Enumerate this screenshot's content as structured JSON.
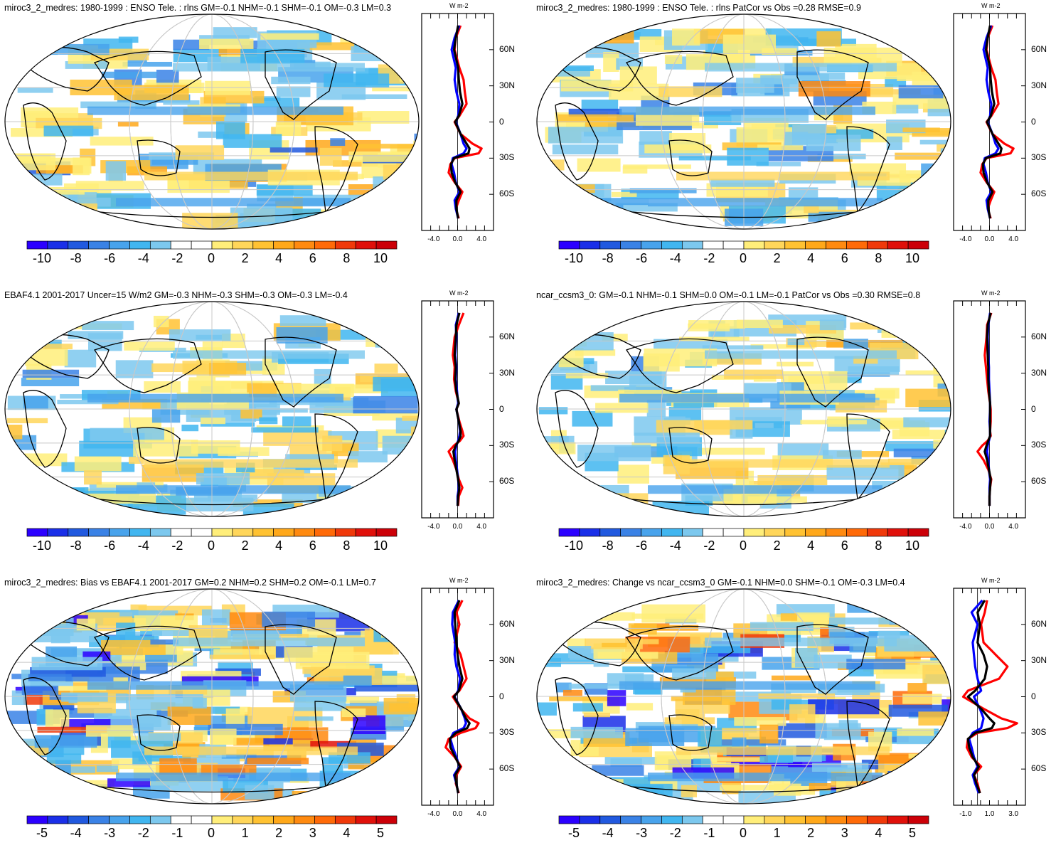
{
  "chart_data": [
    {
      "type": "heatmap",
      "title": "miroc3_2_medres: 1980-1999 : ENSO Tele. : rlns GM=-0.1 NHM=-0.1 SHM=-0.1 OM=-0.3 LM=0.3",
      "colorbar_ticks": [
        "-10",
        "-8",
        "-6",
        "-4",
        "-2",
        "0",
        "2",
        "4",
        "6",
        "8",
        "10"
      ],
      "profile_unit": "W m-2",
      "profile_xticks": [
        "-4.0",
        "0.0",
        "4.0"
      ],
      "lat_ticks": [
        "60N",
        "30N",
        "0",
        "30S",
        "60S"
      ],
      "profile_series": [
        {
          "color": "#ff0000",
          "lat": [
            80,
            70,
            60,
            45,
            35,
            25,
            15,
            5,
            0,
            -10,
            -18,
            -22,
            -26,
            -30,
            -35,
            -42,
            -50,
            -58,
            -65,
            -72,
            -80
          ],
          "values": [
            0.5,
            -0.3,
            -0.5,
            0.3,
            1.0,
            1.2,
            1.5,
            0.3,
            -0.5,
            0.5,
            2.5,
            4.0,
            3.5,
            -0.5,
            -1.2,
            -1.5,
            -0.5,
            0.8,
            0.2,
            -0.3,
            0.2
          ]
        },
        {
          "color": "#0000ff",
          "lat": [
            80,
            70,
            60,
            45,
            35,
            25,
            15,
            5,
            0,
            -10,
            -18,
            -22,
            -26,
            -30,
            -35,
            -42,
            -50,
            -58,
            -65,
            -72,
            -80
          ],
          "values": [
            0.3,
            -0.5,
            -1.0,
            -0.3,
            -0.5,
            -0.2,
            0.3,
            0.1,
            -0.3,
            0.5,
            1.0,
            1.5,
            1.0,
            -0.8,
            -1.0,
            -0.6,
            -0.3,
            0.3,
            -0.5,
            -0.3,
            0.1
          ]
        },
        {
          "color": "#000000",
          "lat": [
            80,
            70,
            60,
            45,
            35,
            25,
            15,
            5,
            0,
            -10,
            -18,
            -22,
            -26,
            -30,
            -35,
            -42,
            -50,
            -58,
            -65,
            -72,
            -80
          ],
          "values": [
            0.1,
            -0.3,
            -0.6,
            0.1,
            0.2,
            0.4,
            0.8,
            0.2,
            -0.4,
            0.5,
            1.5,
            2.0,
            1.8,
            -0.6,
            -1.1,
            -1.0,
            -0.4,
            0.5,
            -0.2,
            -0.2,
            0.1
          ]
        }
      ]
    },
    {
      "type": "heatmap",
      "title": "miroc3_2_medres: 1980-1999 : ENSO Tele. : rlns PatCor vs Obs =0.28 RMSE=0.9",
      "colorbar_ticks": [
        "-10",
        "-8",
        "-6",
        "-4",
        "-2",
        "0",
        "2",
        "4",
        "6",
        "8",
        "10"
      ],
      "profile_unit": "W m-2",
      "profile_xticks": [
        "-4.0",
        "0.0",
        "4.0"
      ],
      "lat_ticks": [
        "60N",
        "30N",
        "0",
        "30S",
        "60S"
      ],
      "profile_series": [
        {
          "color": "#ff0000",
          "lat": [
            80,
            70,
            60,
            45,
            35,
            25,
            15,
            5,
            0,
            -10,
            -18,
            -22,
            -26,
            -30,
            -35,
            -42,
            -50,
            -58,
            -65,
            -72,
            -80
          ],
          "values": [
            0.5,
            -0.3,
            -0.5,
            0.3,
            1.0,
            1.2,
            1.5,
            0.3,
            -0.5,
            0.5,
            2.5,
            4.0,
            3.5,
            -0.5,
            -1.2,
            -1.5,
            -0.5,
            0.8,
            0.2,
            -0.3,
            0.2
          ]
        },
        {
          "color": "#0000ff",
          "lat": [
            80,
            70,
            60,
            45,
            35,
            25,
            15,
            5,
            0,
            -10,
            -18,
            -22,
            -26,
            -30,
            -35,
            -42,
            -50,
            -58,
            -65,
            -72,
            -80
          ],
          "values": [
            0.3,
            -0.5,
            -1.0,
            -0.3,
            -0.5,
            -0.2,
            0.3,
            0.1,
            -0.3,
            0.5,
            1.0,
            1.5,
            1.0,
            -0.8,
            -1.0,
            -0.6,
            -0.3,
            0.3,
            -0.5,
            -0.3,
            0.1
          ]
        },
        {
          "color": "#000000",
          "lat": [
            80,
            70,
            60,
            45,
            35,
            25,
            15,
            5,
            0,
            -10,
            -18,
            -22,
            -26,
            -30,
            -35,
            -42,
            -50,
            -58,
            -65,
            -72,
            -80
          ],
          "values": [
            0.1,
            -0.3,
            -0.6,
            0.1,
            0.2,
            0.4,
            0.8,
            0.2,
            -0.4,
            0.5,
            1.5,
            2.0,
            1.8,
            -0.6,
            -1.1,
            -1.0,
            -0.4,
            0.5,
            -0.2,
            -0.2,
            0.1
          ]
        }
      ]
    },
    {
      "type": "heatmap",
      "title": "EBAF4.1 2001-2017 Uncer=15 W/m2 GM=-0.3 NHM=-0.3 SHM=-0.3 OM=-0.3 LM=-0.4",
      "colorbar_ticks": [
        "-10",
        "-8",
        "-6",
        "-4",
        "-2",
        "0",
        "2",
        "4",
        "6",
        "8",
        "10"
      ],
      "profile_unit": "W m-2",
      "profile_xticks": [
        "-4.0",
        "0.0",
        "4.0"
      ],
      "lat_ticks": [
        "60N",
        "30N",
        "0",
        "30S",
        "60S"
      ],
      "profile_series": [
        {
          "color": "#ff0000",
          "lat": [
            80,
            70,
            60,
            45,
            35,
            25,
            15,
            5,
            0,
            -10,
            -18,
            -22,
            -26,
            -30,
            -35,
            -42,
            -50,
            -58,
            -65,
            -72,
            -80
          ],
          "values": [
            1.0,
            0.2,
            -0.5,
            -0.8,
            -0.5,
            -0.6,
            -0.3,
            0.2,
            -0.2,
            0.3,
            0.8,
            1.0,
            0.4,
            -0.6,
            -1.5,
            -0.8,
            -0.2,
            0.2,
            0.8,
            0.2,
            0.1
          ]
        },
        {
          "color": "#0000ff",
          "lat": [
            80,
            70,
            60,
            45,
            35,
            25,
            15,
            5,
            0,
            -10,
            -18,
            -22,
            -26,
            -30,
            -35,
            -42,
            -50,
            -58,
            -65,
            -72,
            -80
          ],
          "values": [
            0.2,
            -0.3,
            -0.2,
            -0.4,
            -0.2,
            -0.3,
            -0.1,
            0.1,
            -0.2,
            0.2,
            0.4,
            0.3,
            0.1,
            -0.2,
            -0.4,
            -0.3,
            -0.1,
            0.1,
            0.2,
            0.0,
            0.0
          ]
        },
        {
          "color": "#000000",
          "lat": [
            80,
            70,
            60,
            45,
            35,
            25,
            15,
            5,
            0,
            -10,
            -18,
            -22,
            -26,
            -30,
            -35,
            -42,
            -50,
            -58,
            -65,
            -72,
            -80
          ],
          "values": [
            0.3,
            -0.2,
            -0.3,
            -0.5,
            -0.3,
            -0.4,
            -0.2,
            0.2,
            -0.2,
            0.2,
            0.5,
            0.5,
            0.2,
            -0.3,
            -0.7,
            -0.5,
            -0.2,
            0.1,
            0.3,
            0.1,
            0.0
          ]
        }
      ]
    },
    {
      "type": "heatmap",
      "title": "ncar_ccsm3_0: GM=-0.1 NHM=-0.1 SHM=0.0 OM=-0.1 LM=-0.1 PatCor vs Obs =0.30 RMSE=0.8",
      "colorbar_ticks": [
        "-10",
        "-8",
        "-6",
        "-4",
        "-2",
        "0",
        "2",
        "4",
        "6",
        "8",
        "10"
      ],
      "profile_unit": "W m-2",
      "profile_xticks": [
        "-4.0",
        "0.0",
        "4.0"
      ],
      "lat_ticks": [
        "60N",
        "30N",
        "0",
        "30S",
        "60S"
      ],
      "profile_series": [
        {
          "color": "#ff0000",
          "lat": [
            80,
            70,
            60,
            45,
            35,
            25,
            15,
            5,
            0,
            -10,
            -18,
            -22,
            -26,
            -30,
            -35,
            -42,
            -50,
            -58,
            -65,
            -72,
            -80
          ],
          "values": [
            0.3,
            -0.4,
            -0.5,
            -0.8,
            -0.6,
            -0.4,
            -0.2,
            0.1,
            0.2,
            0.2,
            0.1,
            0.2,
            -0.3,
            -1.2,
            -2.0,
            -1.0,
            -0.2,
            0.3,
            0.1,
            0.0,
            0.0
          ]
        },
        {
          "color": "#0000ff",
          "lat": [
            80,
            70,
            60,
            45,
            35,
            25,
            15,
            5,
            0,
            -10,
            -18,
            -22,
            -26,
            -30,
            -35,
            -42,
            -50,
            -58,
            -65,
            -72,
            -80
          ],
          "values": [
            0.1,
            -0.2,
            -0.3,
            -0.2,
            -0.1,
            -0.1,
            0.0,
            0.1,
            0.1,
            0.0,
            0.1,
            0.1,
            -0.1,
            -0.3,
            -0.4,
            -0.2,
            -0.1,
            0.1,
            0.0,
            0.0,
            0.0
          ]
        },
        {
          "color": "#000000",
          "lat": [
            80,
            70,
            60,
            45,
            35,
            25,
            15,
            5,
            0,
            -10,
            -18,
            -22,
            -26,
            -30,
            -35,
            -42,
            -50,
            -58,
            -65,
            -72,
            -80
          ],
          "values": [
            0.2,
            -0.3,
            -0.4,
            -0.3,
            -0.2,
            -0.2,
            -0.1,
            0.1,
            0.1,
            0.1,
            0.1,
            0.1,
            -0.2,
            -0.5,
            -0.8,
            -0.4,
            -0.1,
            0.2,
            0.1,
            0.0,
            0.0
          ]
        }
      ]
    },
    {
      "type": "heatmap",
      "title": "miroc3_2_medres: Bias vs EBAF4.1 2001-2017 GM=0.2 NHM=0.2 SHM=0.2 OM=-0.1 LM=0.7",
      "colorbar_ticks": [
        "-5",
        "-4",
        "-3",
        "-2",
        "-1",
        "0",
        "1",
        "2",
        "3",
        "4",
        "5"
      ],
      "profile_unit": "W m-2",
      "profile_xticks": [
        "-4.0",
        "0.0",
        "4.0"
      ],
      "lat_ticks": [
        "60N",
        "30N",
        "0",
        "30S",
        "60S"
      ],
      "profile_series": [
        {
          "color": "#ff0000",
          "lat": [
            80,
            70,
            60,
            45,
            35,
            25,
            15,
            5,
            0,
            -10,
            -18,
            -22,
            -26,
            -30,
            -35,
            -42,
            -50,
            -58,
            -65,
            -72,
            -80
          ],
          "values": [
            0.8,
            -0.2,
            0.3,
            -0.5,
            0.5,
            1.0,
            1.5,
            0.3,
            -0.8,
            0.5,
            2.0,
            3.5,
            3.0,
            0.5,
            -1.5,
            -2.0,
            -0.5,
            0.6,
            -0.2,
            -0.3,
            0.2
          ]
        },
        {
          "color": "#0000ff",
          "lat": [
            80,
            70,
            60,
            45,
            35,
            25,
            15,
            5,
            0,
            -10,
            -18,
            -22,
            -26,
            -30,
            -35,
            -42,
            -50,
            -58,
            -65,
            -72,
            -80
          ],
          "values": [
            0.2,
            -0.8,
            -0.9,
            -0.4,
            -0.5,
            -0.2,
            0.4,
            0.1,
            -0.5,
            0.6,
            1.2,
            1.4,
            1.0,
            -0.7,
            -1.2,
            -0.8,
            -0.2,
            0.3,
            -0.6,
            -0.2,
            0.1
          ]
        },
        {
          "color": "#000000",
          "lat": [
            80,
            70,
            60,
            45,
            35,
            25,
            15,
            5,
            0,
            -10,
            -18,
            -22,
            -26,
            -30,
            -35,
            -42,
            -50,
            -58,
            -65,
            -72,
            -80
          ],
          "values": [
            0.3,
            -0.5,
            -0.4,
            -0.2,
            0.0,
            0.3,
            0.8,
            0.2,
            -0.6,
            0.6,
            1.4,
            2.0,
            1.6,
            -0.3,
            -1.3,
            -1.2,
            -0.4,
            0.4,
            -0.4,
            -0.2,
            0.1
          ]
        }
      ]
    },
    {
      "type": "heatmap",
      "title": "miroc3_2_medres: Change vs ncar_ccsm3_0 GM=-0.1 NHM=0.0 SHM=-0.1 OM=-0.3 LM=0.4",
      "colorbar_ticks": [
        "-5",
        "-4",
        "-3",
        "-2",
        "-1",
        "0",
        "1",
        "2",
        "3",
        "4",
        "5"
      ],
      "profile_unit": "W m-2",
      "profile_xticks": [
        "-1.0",
        "1.0",
        "3.0"
      ],
      "lat_ticks": [
        "60N",
        "30N",
        "0",
        "30S",
        "60S"
      ],
      "profile_series": [
        {
          "color": "#ff0000",
          "lat": [
            80,
            70,
            60,
            45,
            35,
            25,
            15,
            5,
            0,
            -10,
            -18,
            -22,
            -26,
            -30,
            -35,
            -42,
            -50,
            -58,
            -65,
            -72,
            -80
          ],
          "values": [
            0.8,
            0.6,
            0.3,
            0.5,
            1.5,
            2.5,
            1.8,
            -0.8,
            -1.2,
            0.5,
            2.0,
            3.3,
            2.5,
            0.0,
            -0.8,
            -0.9,
            -0.5,
            0.3,
            -0.3,
            0.0,
            0.2
          ]
        },
        {
          "color": "#0000ff",
          "lat": [
            80,
            70,
            60,
            45,
            35,
            25,
            15,
            5,
            0,
            -10,
            -18,
            -22,
            -26,
            -30,
            -35,
            -42,
            -50,
            -58,
            -65,
            -72,
            -80
          ],
          "values": [
            0.4,
            -0.5,
            0.0,
            -0.4,
            -0.3,
            -0.2,
            0.0,
            0.3,
            -0.3,
            0.2,
            0.5,
            0.4,
            0.3,
            -0.4,
            -0.7,
            -0.5,
            -0.3,
            0.0,
            -0.4,
            -0.2,
            0.1
          ]
        },
        {
          "color": "#000000",
          "lat": [
            80,
            70,
            60,
            45,
            35,
            25,
            15,
            5,
            0,
            -10,
            -18,
            -22,
            -26,
            -30,
            -35,
            -42,
            -50,
            -58,
            -65,
            -72,
            -80
          ],
          "values": [
            0.6,
            0.0,
            0.2,
            0.0,
            0.5,
            0.8,
            0.6,
            -0.2,
            -0.8,
            0.3,
            1.0,
            1.4,
            1.2,
            -0.2,
            -0.8,
            -0.7,
            -0.4,
            0.1,
            -0.3,
            -0.1,
            0.2
          ]
        }
      ]
    }
  ]
}
